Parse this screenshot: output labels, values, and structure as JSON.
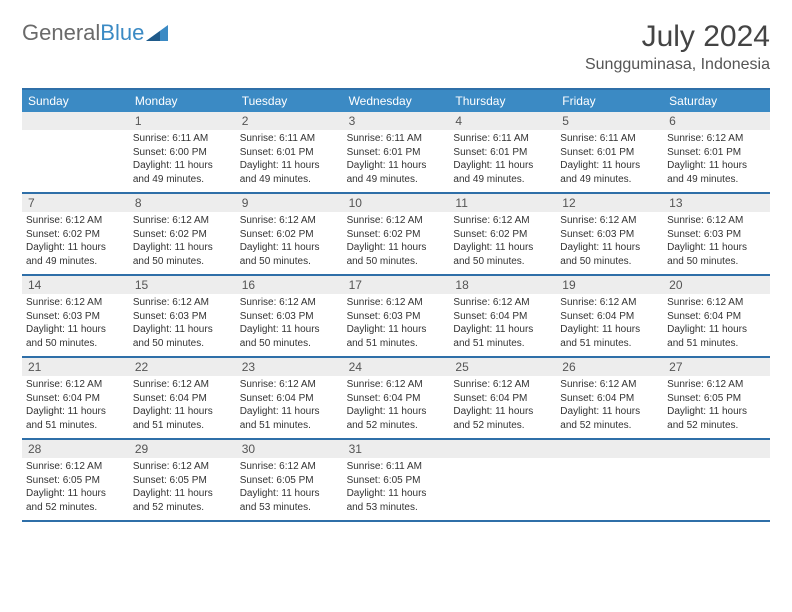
{
  "logo": {
    "text1": "General",
    "text2": "Blue"
  },
  "title": "July 2024",
  "location": "Sungguminasa, Indonesia",
  "colors": {
    "header_bg": "#3b8ac4",
    "border": "#2f6fa8",
    "daynum_bg": "#ededed",
    "text": "#333333",
    "logo_gray": "#6a6a6a",
    "logo_blue": "#3b8ac4"
  },
  "daynames": [
    "Sunday",
    "Monday",
    "Tuesday",
    "Wednesday",
    "Thursday",
    "Friday",
    "Saturday"
  ],
  "weeks": [
    [
      {
        "day": "",
        "sunrise": "",
        "sunset": "",
        "daylight": ""
      },
      {
        "day": "1",
        "sunrise": "Sunrise: 6:11 AM",
        "sunset": "Sunset: 6:00 PM",
        "daylight": "Daylight: 11 hours and 49 minutes."
      },
      {
        "day": "2",
        "sunrise": "Sunrise: 6:11 AM",
        "sunset": "Sunset: 6:01 PM",
        "daylight": "Daylight: 11 hours and 49 minutes."
      },
      {
        "day": "3",
        "sunrise": "Sunrise: 6:11 AM",
        "sunset": "Sunset: 6:01 PM",
        "daylight": "Daylight: 11 hours and 49 minutes."
      },
      {
        "day": "4",
        "sunrise": "Sunrise: 6:11 AM",
        "sunset": "Sunset: 6:01 PM",
        "daylight": "Daylight: 11 hours and 49 minutes."
      },
      {
        "day": "5",
        "sunrise": "Sunrise: 6:11 AM",
        "sunset": "Sunset: 6:01 PM",
        "daylight": "Daylight: 11 hours and 49 minutes."
      },
      {
        "day": "6",
        "sunrise": "Sunrise: 6:12 AM",
        "sunset": "Sunset: 6:01 PM",
        "daylight": "Daylight: 11 hours and 49 minutes."
      }
    ],
    [
      {
        "day": "7",
        "sunrise": "Sunrise: 6:12 AM",
        "sunset": "Sunset: 6:02 PM",
        "daylight": "Daylight: 11 hours and 49 minutes."
      },
      {
        "day": "8",
        "sunrise": "Sunrise: 6:12 AM",
        "sunset": "Sunset: 6:02 PM",
        "daylight": "Daylight: 11 hours and 50 minutes."
      },
      {
        "day": "9",
        "sunrise": "Sunrise: 6:12 AM",
        "sunset": "Sunset: 6:02 PM",
        "daylight": "Daylight: 11 hours and 50 minutes."
      },
      {
        "day": "10",
        "sunrise": "Sunrise: 6:12 AM",
        "sunset": "Sunset: 6:02 PM",
        "daylight": "Daylight: 11 hours and 50 minutes."
      },
      {
        "day": "11",
        "sunrise": "Sunrise: 6:12 AM",
        "sunset": "Sunset: 6:02 PM",
        "daylight": "Daylight: 11 hours and 50 minutes."
      },
      {
        "day": "12",
        "sunrise": "Sunrise: 6:12 AM",
        "sunset": "Sunset: 6:03 PM",
        "daylight": "Daylight: 11 hours and 50 minutes."
      },
      {
        "day": "13",
        "sunrise": "Sunrise: 6:12 AM",
        "sunset": "Sunset: 6:03 PM",
        "daylight": "Daylight: 11 hours and 50 minutes."
      }
    ],
    [
      {
        "day": "14",
        "sunrise": "Sunrise: 6:12 AM",
        "sunset": "Sunset: 6:03 PM",
        "daylight": "Daylight: 11 hours and 50 minutes."
      },
      {
        "day": "15",
        "sunrise": "Sunrise: 6:12 AM",
        "sunset": "Sunset: 6:03 PM",
        "daylight": "Daylight: 11 hours and 50 minutes."
      },
      {
        "day": "16",
        "sunrise": "Sunrise: 6:12 AM",
        "sunset": "Sunset: 6:03 PM",
        "daylight": "Daylight: 11 hours and 50 minutes."
      },
      {
        "day": "17",
        "sunrise": "Sunrise: 6:12 AM",
        "sunset": "Sunset: 6:03 PM",
        "daylight": "Daylight: 11 hours and 51 minutes."
      },
      {
        "day": "18",
        "sunrise": "Sunrise: 6:12 AM",
        "sunset": "Sunset: 6:04 PM",
        "daylight": "Daylight: 11 hours and 51 minutes."
      },
      {
        "day": "19",
        "sunrise": "Sunrise: 6:12 AM",
        "sunset": "Sunset: 6:04 PM",
        "daylight": "Daylight: 11 hours and 51 minutes."
      },
      {
        "day": "20",
        "sunrise": "Sunrise: 6:12 AM",
        "sunset": "Sunset: 6:04 PM",
        "daylight": "Daylight: 11 hours and 51 minutes."
      }
    ],
    [
      {
        "day": "21",
        "sunrise": "Sunrise: 6:12 AM",
        "sunset": "Sunset: 6:04 PM",
        "daylight": "Daylight: 11 hours and 51 minutes."
      },
      {
        "day": "22",
        "sunrise": "Sunrise: 6:12 AM",
        "sunset": "Sunset: 6:04 PM",
        "daylight": "Daylight: 11 hours and 51 minutes."
      },
      {
        "day": "23",
        "sunrise": "Sunrise: 6:12 AM",
        "sunset": "Sunset: 6:04 PM",
        "daylight": "Daylight: 11 hours and 51 minutes."
      },
      {
        "day": "24",
        "sunrise": "Sunrise: 6:12 AM",
        "sunset": "Sunset: 6:04 PM",
        "daylight": "Daylight: 11 hours and 52 minutes."
      },
      {
        "day": "25",
        "sunrise": "Sunrise: 6:12 AM",
        "sunset": "Sunset: 6:04 PM",
        "daylight": "Daylight: 11 hours and 52 minutes."
      },
      {
        "day": "26",
        "sunrise": "Sunrise: 6:12 AM",
        "sunset": "Sunset: 6:04 PM",
        "daylight": "Daylight: 11 hours and 52 minutes."
      },
      {
        "day": "27",
        "sunrise": "Sunrise: 6:12 AM",
        "sunset": "Sunset: 6:05 PM",
        "daylight": "Daylight: 11 hours and 52 minutes."
      }
    ],
    [
      {
        "day": "28",
        "sunrise": "Sunrise: 6:12 AM",
        "sunset": "Sunset: 6:05 PM",
        "daylight": "Daylight: 11 hours and 52 minutes."
      },
      {
        "day": "29",
        "sunrise": "Sunrise: 6:12 AM",
        "sunset": "Sunset: 6:05 PM",
        "daylight": "Daylight: 11 hours and 52 minutes."
      },
      {
        "day": "30",
        "sunrise": "Sunrise: 6:12 AM",
        "sunset": "Sunset: 6:05 PM",
        "daylight": "Daylight: 11 hours and 53 minutes."
      },
      {
        "day": "31",
        "sunrise": "Sunrise: 6:11 AM",
        "sunset": "Sunset: 6:05 PM",
        "daylight": "Daylight: 11 hours and 53 minutes."
      },
      {
        "day": "",
        "sunrise": "",
        "sunset": "",
        "daylight": ""
      },
      {
        "day": "",
        "sunrise": "",
        "sunset": "",
        "daylight": ""
      },
      {
        "day": "",
        "sunrise": "",
        "sunset": "",
        "daylight": ""
      }
    ]
  ]
}
